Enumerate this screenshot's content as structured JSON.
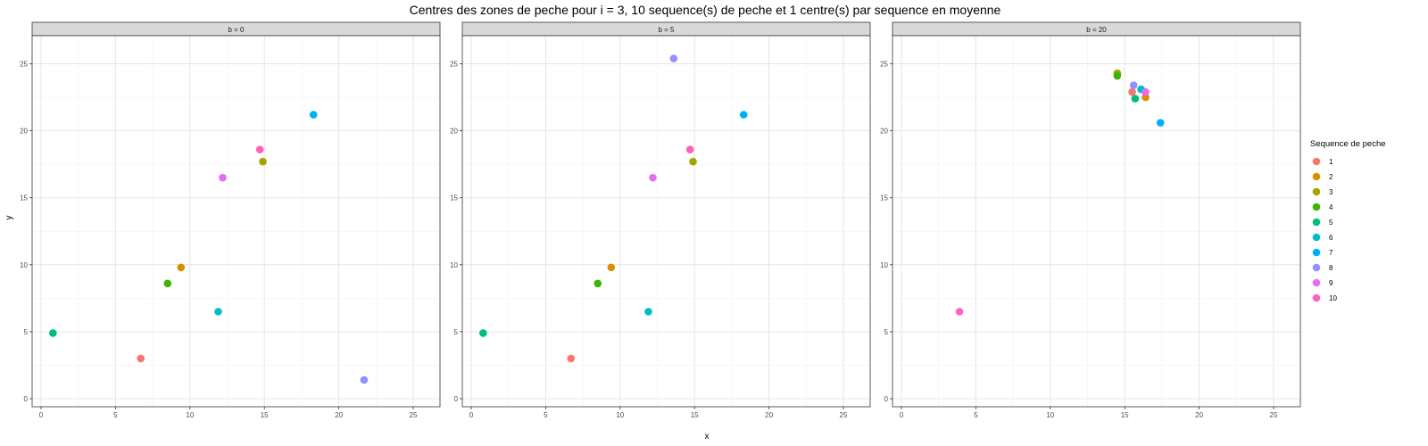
{
  "chart_data": {
    "type": "scatter",
    "title": "Centres des zones de peche pour i = 3, 10 sequence(s) de peche et 1 centre(s) par sequence en moyenne",
    "xlabel": "x",
    "ylabel": "y",
    "xlim": [
      -0.6,
      26.8
    ],
    "ylim": [
      -0.6,
      27.1
    ],
    "x_ticks": [
      0,
      5,
      10,
      15,
      20,
      25
    ],
    "y_ticks": [
      0,
      5,
      10,
      15,
      20,
      25
    ],
    "grid": true,
    "legend": {
      "title": "Sequence de peche",
      "position": "right",
      "entries": [
        "1",
        "2",
        "3",
        "4",
        "5",
        "6",
        "7",
        "8",
        "9",
        "10"
      ]
    },
    "colors": [
      "#F8766D",
      "#D89000",
      "#A3A500",
      "#39B600",
      "#00BF7D",
      "#00BFC4",
      "#00B0F6",
      "#9590FF",
      "#E76BF3",
      "#FF62BC"
    ],
    "panels": [
      {
        "label": "b = 0",
        "points": [
          {
            "seq": 1,
            "x": 6.7,
            "y": 3.0
          },
          {
            "seq": 2,
            "x": 9.4,
            "y": 9.8
          },
          {
            "seq": 3,
            "x": 14.9,
            "y": 17.7
          },
          {
            "seq": 4,
            "x": 8.5,
            "y": 8.6
          },
          {
            "seq": 5,
            "x": 0.8,
            "y": 4.9
          },
          {
            "seq": 6,
            "x": 11.9,
            "y": 6.5
          },
          {
            "seq": 7,
            "x": 18.3,
            "y": 21.2
          },
          {
            "seq": 8,
            "x": 21.7,
            "y": 1.4
          },
          {
            "seq": 9,
            "x": 12.2,
            "y": 16.5
          },
          {
            "seq": 10,
            "x": 14.7,
            "y": 18.6
          }
        ]
      },
      {
        "label": "b = 5",
        "points": [
          {
            "seq": 1,
            "x": 6.7,
            "y": 3.0
          },
          {
            "seq": 2,
            "x": 9.4,
            "y": 9.8
          },
          {
            "seq": 3,
            "x": 14.9,
            "y": 17.7
          },
          {
            "seq": 4,
            "x": 8.5,
            "y": 8.6
          },
          {
            "seq": 5,
            "x": 0.8,
            "y": 4.9
          },
          {
            "seq": 6,
            "x": 11.9,
            "y": 6.5
          },
          {
            "seq": 7,
            "x": 18.3,
            "y": 21.2
          },
          {
            "seq": 8,
            "x": 13.6,
            "y": 25.4
          },
          {
            "seq": 9,
            "x": 12.2,
            "y": 16.5
          },
          {
            "seq": 10,
            "x": 14.7,
            "y": 18.6
          }
        ]
      },
      {
        "label": "b = 20",
        "points": [
          {
            "seq": 1,
            "x": 15.5,
            "y": 22.9
          },
          {
            "seq": 2,
            "x": 16.4,
            "y": 22.5
          },
          {
            "seq": 3,
            "x": 14.5,
            "y": 24.3
          },
          {
            "seq": 4,
            "x": 14.5,
            "y": 24.1
          },
          {
            "seq": 5,
            "x": 15.7,
            "y": 22.4
          },
          {
            "seq": 6,
            "x": 16.1,
            "y": 23.1
          },
          {
            "seq": 7,
            "x": 17.4,
            "y": 20.6
          },
          {
            "seq": 8,
            "x": 15.6,
            "y": 23.4
          },
          {
            "seq": 9,
            "x": 16.4,
            "y": 22.9
          },
          {
            "seq": 10,
            "x": 3.9,
            "y": 6.5
          }
        ]
      }
    ]
  }
}
